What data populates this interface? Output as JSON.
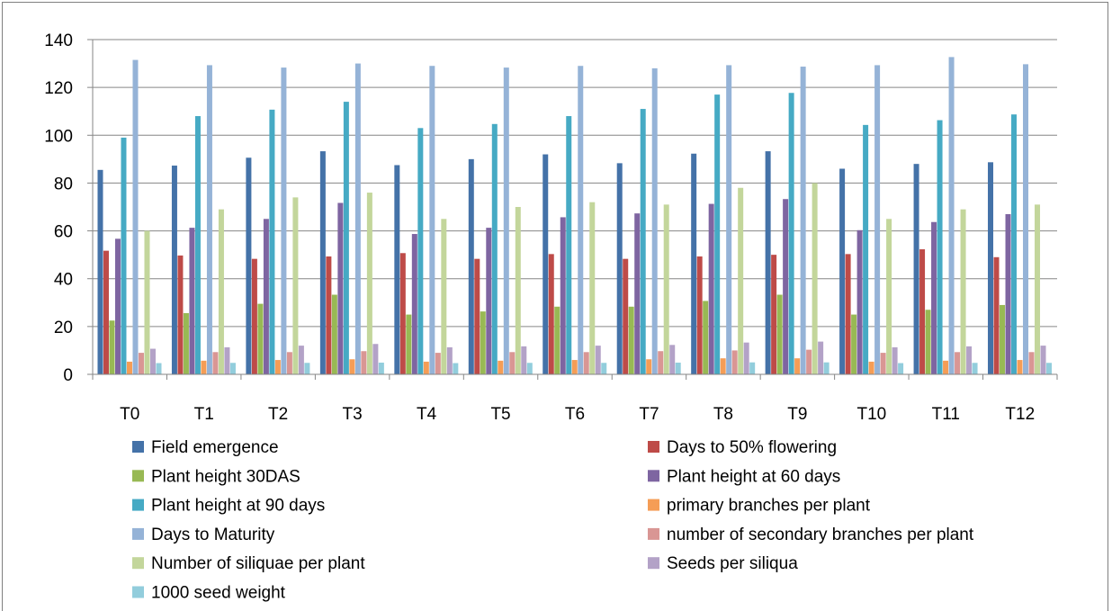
{
  "chart_data": {
    "type": "bar",
    "categories": [
      "T0",
      "T1",
      "T2",
      "T3",
      "T4",
      "T5",
      "T6",
      "T7",
      "T8",
      "T9",
      "T10",
      "T11",
      "T12"
    ],
    "ylim": [
      0,
      140
    ],
    "yticks": [
      0,
      20,
      40,
      60,
      80,
      100,
      120,
      140
    ],
    "grid": true,
    "legend_position": "bottom",
    "series": [
      {
        "name": "Field emergence",
        "color": "#4472A8",
        "values": [
          85.5,
          87.3,
          90.6,
          93.3,
          87.5,
          90.0,
          92.0,
          88.3,
          92.3,
          93.3,
          86.0,
          88.0,
          88.7
        ]
      },
      {
        "name": "Days to 50% flowering",
        "color": "#BE4B48",
        "values": [
          51.7,
          49.7,
          48.3,
          49.3,
          50.7,
          48.3,
          50.3,
          48.3,
          49.3,
          50.0,
          50.3,
          52.3,
          49.0
        ]
      },
      {
        "name": "Plant height 30DAS",
        "color": "#98B954",
        "values": [
          22.5,
          25.6,
          29.5,
          33.3,
          25.0,
          26.3,
          28.3,
          28.3,
          30.7,
          33.3,
          25.0,
          27.0,
          29.0
        ]
      },
      {
        "name": "Plant height at 60 days",
        "color": "#7E65A1",
        "values": [
          56.7,
          61.3,
          65.0,
          71.7,
          58.7,
          61.3,
          65.7,
          67.3,
          71.3,
          73.3,
          60.3,
          63.7,
          67.0
        ]
      },
      {
        "name": "Plant height at 90 days",
        "color": "#46AAC4",
        "values": [
          99.0,
          108.0,
          110.7,
          114.0,
          103.0,
          104.7,
          108.0,
          111.0,
          117.0,
          117.7,
          104.3,
          106.3,
          108.7
        ]
      },
      {
        "name": "primary branches per plant",
        "color": "#F59D56",
        "values": [
          5.3,
          5.7,
          6.0,
          6.3,
          5.3,
          5.7,
          6.0,
          6.3,
          6.7,
          6.7,
          5.3,
          5.7,
          6.0
        ]
      },
      {
        "name": "Days to Maturity",
        "color": "#95B3D7",
        "values": [
          131.5,
          129.3,
          128.3,
          130.0,
          129.0,
          128.3,
          129.0,
          128.0,
          129.3,
          128.7,
          129.3,
          132.7,
          129.7
        ]
      },
      {
        "name": "number of secondary branches per plant",
        "color": "#D99694",
        "values": [
          9.0,
          9.3,
          9.3,
          9.7,
          9.0,
          9.3,
          9.3,
          9.7,
          10.0,
          10.3,
          9.0,
          9.3,
          9.3
        ]
      },
      {
        "name": "Number of siliquae per plant",
        "color": "#C3D69B",
        "values": [
          60.0,
          69.0,
          74.0,
          76.0,
          65.0,
          70.0,
          72.0,
          71.0,
          78.0,
          80.0,
          65.0,
          69.0,
          71.0
        ]
      },
      {
        "name": "Seeds per siliqua",
        "color": "#B3A2C7",
        "values": [
          10.7,
          11.3,
          12.0,
          12.7,
          11.3,
          11.7,
          12.0,
          12.3,
          13.3,
          13.7,
          11.3,
          11.7,
          12.0
        ]
      },
      {
        "name": "1000 seed weight",
        "color": "#92CDDC",
        "values": [
          4.7,
          4.8,
          4.8,
          4.9,
          4.7,
          4.8,
          4.8,
          4.9,
          5.0,
          5.0,
          4.7,
          4.8,
          4.8
        ]
      }
    ]
  }
}
